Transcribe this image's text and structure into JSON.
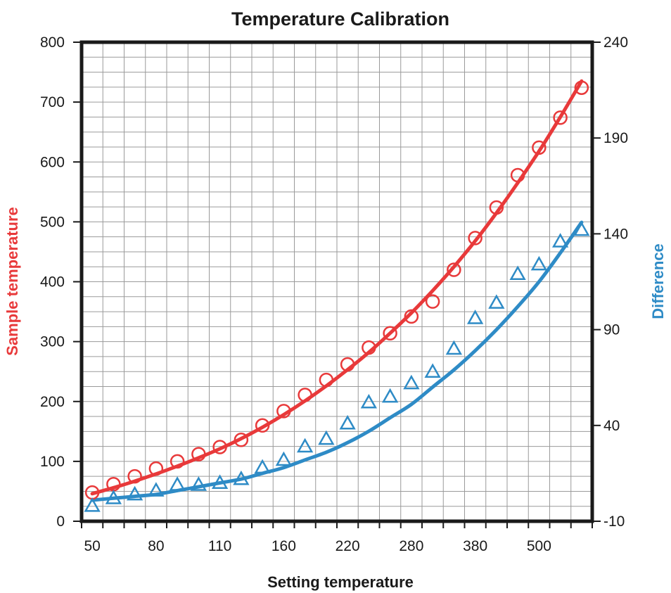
{
  "chart_data": {
    "type": "scatter",
    "title": "Temperature Calibration",
    "xlabel": "Setting temperature",
    "ylabel": "Sample temperature",
    "y2label": "Difference",
    "x_tick_labels": [
      "50",
      "80",
      "110",
      "160",
      "220",
      "280",
      "380",
      "500"
    ],
    "x": [
      "50",
      "60",
      "70",
      "80",
      "90",
      "100",
      "110",
      "125",
      "145",
      "160",
      "180",
      "200",
      "220",
      "240",
      "260",
      "280",
      "300",
      "340",
      "380",
      "420",
      "460",
      "500",
      "540",
      "580"
    ],
    "ylim": [
      0,
      800
    ],
    "yticks": [
      0,
      100,
      200,
      300,
      400,
      500,
      600,
      700,
      800
    ],
    "y2lim": [
      -10,
      240
    ],
    "y2ticks": [
      -10,
      40,
      90,
      140,
      190,
      240
    ],
    "grid": true,
    "series": [
      {
        "name": "Sample temperature",
        "axis": "left",
        "marker": "circle",
        "color": "#e8393a",
        "values": [
          48,
          62,
          75,
          88,
          100,
          112,
          124,
          136,
          160,
          184,
          211,
          236,
          262,
          290,
          314,
          342,
          367,
          420,
          473,
          524,
          578,
          624,
          674,
          724
        ],
        "fit": [
          46,
          56,
          67,
          79,
          92,
          106,
          121,
          138,
          157,
          178,
          201,
          226,
          253,
          282,
          314,
          348,
          385,
          425,
          468,
          515,
          565,
          618,
          675,
          735
        ]
      },
      {
        "name": "Difference",
        "axis": "right",
        "marker": "triangle",
        "color": "#2e8bc6",
        "values": [
          -2,
          2,
          4,
          6,
          9,
          9,
          10,
          12,
          18,
          22,
          29,
          33,
          41,
          52,
          55,
          62,
          68,
          80,
          96,
          104,
          119,
          124,
          136,
          142
        ],
        "fit": [
          1,
          2,
          3,
          4,
          6,
          8,
          10,
          12,
          15,
          18,
          22,
          26,
          31,
          37,
          44,
          51,
          60,
          69,
          79,
          90,
          102,
          115,
          130,
          146
        ]
      }
    ]
  }
}
